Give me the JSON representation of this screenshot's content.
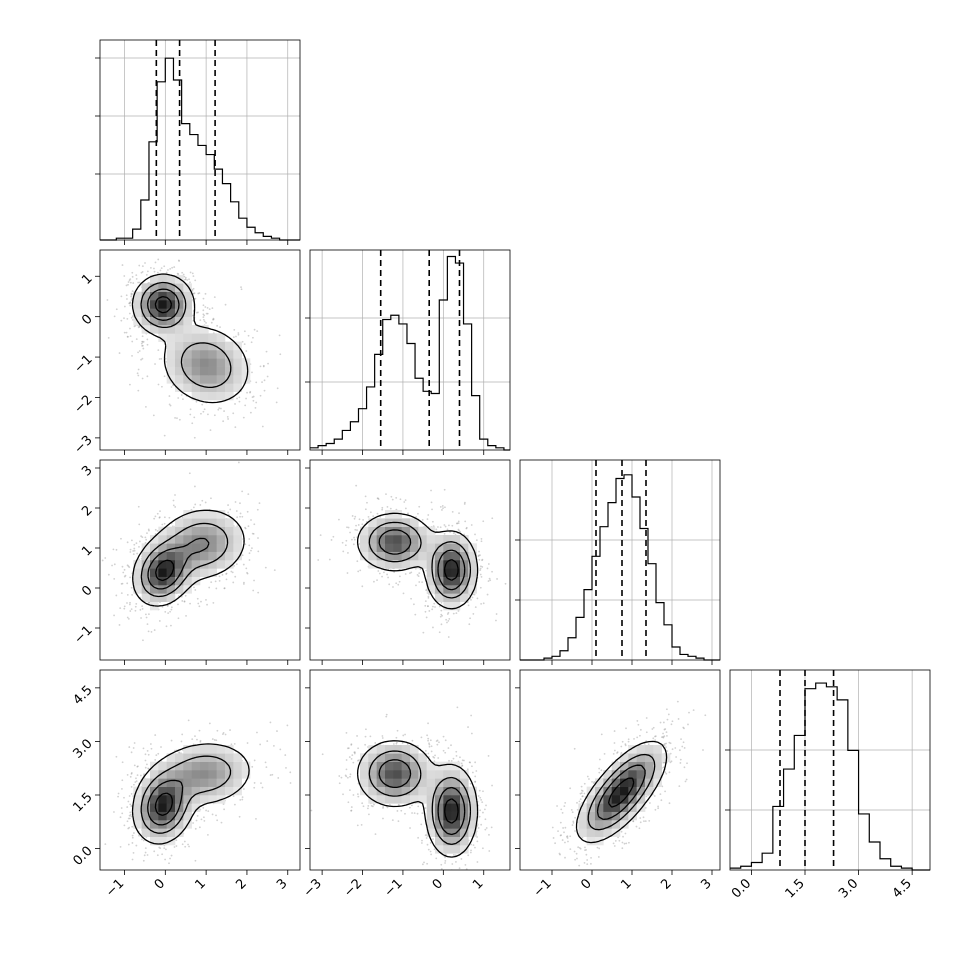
{
  "chart_data": {
    "type": "corner",
    "title": "",
    "grid": true,
    "params": [
      {
        "ticks": [
          -1,
          0,
          1,
          2,
          3
        ],
        "tick_labels": [
          "−1",
          "0",
          "1",
          "2",
          "3"
        ],
        "range": [
          -1.6,
          3.3
        ]
      },
      {
        "ticks": [
          -3,
          -2,
          -1,
          0,
          1
        ],
        "tick_labels": [
          "−3",
          "−2",
          "−1",
          "0",
          "1"
        ],
        "range": [
          -3.3,
          1.65
        ]
      },
      {
        "ticks": [
          -1,
          0,
          1,
          2,
          3
        ],
        "tick_labels": [
          "−1",
          "0",
          "1",
          "2",
          "3"
        ],
        "range": [
          -1.8,
          3.2
        ]
      },
      {
        "ticks": [
          0,
          1.5,
          3,
          4.5
        ],
        "tick_labels": [
          "0.0",
          "1.5",
          "3.0",
          "4.5"
        ],
        "range": [
          -0.6,
          5.0
        ]
      }
    ],
    "histograms": [
      {
        "bin_edges": [
          -1.6,
          -1.4,
          -1.2,
          -1.0,
          -0.8,
          -0.6,
          -0.4,
          -0.2,
          0.0,
          0.2,
          0.4,
          0.6,
          0.8,
          1.0,
          1.2,
          1.4,
          1.6,
          1.8,
          2.0,
          2.2,
          2.4,
          2.6,
          2.8,
          3.0,
          3.3
        ],
        "counts": [
          0,
          0,
          0.01,
          0.01,
          0.06,
          0.22,
          0.54,
          0.87,
          1.0,
          0.88,
          0.64,
          0.58,
          0.52,
          0.47,
          0.39,
          0.31,
          0.21,
          0.12,
          0.07,
          0.04,
          0.02,
          0.01,
          0,
          0
        ],
        "ymax": 1.1,
        "ytick_fracs": [
          0.33,
          0.62,
          0.91
        ],
        "quantiles": [
          -0.22,
          0.35,
          1.22
        ]
      },
      {
        "bin_edges": [
          -3.3,
          -3.1,
          -2.9,
          -2.7,
          -2.5,
          -2.3,
          -2.1,
          -1.9,
          -1.7,
          -1.5,
          -1.3,
          -1.1,
          -0.9,
          -0.7,
          -0.5,
          -0.3,
          -0.1,
          0.1,
          0.3,
          0.5,
          0.7,
          0.9,
          1.1,
          1.3,
          1.5,
          1.65
        ],
        "counts": [
          0.01,
          0.02,
          0.03,
          0.05,
          0.09,
          0.13,
          0.19,
          0.29,
          0.44,
          0.6,
          0.62,
          0.58,
          0.49,
          0.33,
          0.27,
          0.26,
          0.69,
          0.89,
          0.86,
          0.58,
          0.25,
          0.05,
          0.02,
          0.01,
          0
        ],
        "ymax": 0.92,
        "ytick_fracs": [
          0.34,
          0.66
        ],
        "quantiles": [
          -1.55,
          -0.35,
          0.4
        ]
      },
      {
        "bin_edges": [
          -1.8,
          -1.6,
          -1.4,
          -1.2,
          -1.0,
          -0.8,
          -0.6,
          -0.4,
          -0.2,
          0.0,
          0.2,
          0.4,
          0.6,
          0.8,
          1.0,
          1.2,
          1.4,
          1.6,
          1.8,
          2.0,
          2.2,
          2.4,
          2.6,
          2.8,
          3.0,
          3.2
        ],
        "counts": [
          0,
          0,
          0,
          0.01,
          0.02,
          0.05,
          0.12,
          0.23,
          0.38,
          0.56,
          0.72,
          0.85,
          0.98,
          1.0,
          0.88,
          0.71,
          0.52,
          0.31,
          0.19,
          0.07,
          0.03,
          0.02,
          0.01,
          0,
          0
        ],
        "ymax": 1.08,
        "ytick_fracs": [
          0.3,
          0.6
        ],
        "quantiles": [
          0.1,
          0.75,
          1.35
        ]
      },
      {
        "bin_edges": [
          -0.6,
          -0.3,
          0.0,
          0.3,
          0.6,
          0.9,
          1.2,
          1.5,
          1.8,
          2.1,
          2.4,
          2.7,
          3.0,
          3.3,
          3.6,
          3.9,
          4.2,
          4.5,
          4.8,
          5.0
        ],
        "counts": [
          0.01,
          0.02,
          0.04,
          0.09,
          0.34,
          0.54,
          0.72,
          0.97,
          1.0,
          0.98,
          0.91,
          0.64,
          0.3,
          0.15,
          0.06,
          0.02,
          0.01,
          0,
          0
        ],
        "ymax": 1.07,
        "ytick_fracs": [
          0.3,
          0.6
        ],
        "quantiles": [
          0.8,
          1.5,
          2.3
        ]
      }
    ],
    "joint": [
      {
        "row": 1,
        "col": 0,
        "modes": [
          {
            "cx": -0.05,
            "cy": 0.3,
            "sx": 0.35,
            "sy": 0.35,
            "rho": 0.0,
            "w": 1.0
          },
          {
            "cx": 1.0,
            "cy": -1.2,
            "sx": 0.55,
            "sy": 0.5,
            "rho": -0.15,
            "w": 0.55
          }
        ],
        "levels": [
          0.85,
          0.55,
          0.3,
          0.1
        ]
      },
      {
        "row": 2,
        "col": 0,
        "modes": [
          {
            "cx": -0.05,
            "cy": 0.4,
            "sx": 0.35,
            "sy": 0.4,
            "rho": 0.2,
            "w": 1.0
          },
          {
            "cx": 0.9,
            "cy": 1.1,
            "sx": 0.55,
            "sy": 0.45,
            "rho": 0.1,
            "w": 0.6
          }
        ],
        "levels": [
          0.85,
          0.55,
          0.3,
          0.1
        ]
      },
      {
        "row": 2,
        "col": 1,
        "modes": [
          {
            "cx": -1.2,
            "cy": 1.15,
            "sx": 0.45,
            "sy": 0.35,
            "rho": 0.0,
            "w": 0.8
          },
          {
            "cx": 0.2,
            "cy": 0.45,
            "sx": 0.3,
            "sy": 0.45,
            "rho": 0.0,
            "w": 1.0
          }
        ],
        "levels": [
          0.85,
          0.55,
          0.3,
          0.1
        ]
      },
      {
        "row": 3,
        "col": 0,
        "modes": [
          {
            "cx": -0.05,
            "cy": 1.2,
            "sx": 0.35,
            "sy": 0.5,
            "rho": 0.15,
            "w": 1.0
          },
          {
            "cx": 0.95,
            "cy": 2.1,
            "sx": 0.6,
            "sy": 0.45,
            "rho": 0.1,
            "w": 0.55
          }
        ],
        "levels": [
          0.85,
          0.55,
          0.3,
          0.1
        ]
      },
      {
        "row": 3,
        "col": 1,
        "modes": [
          {
            "cx": -1.2,
            "cy": 2.1,
            "sx": 0.45,
            "sy": 0.45,
            "rho": 0.0,
            "w": 0.8
          },
          {
            "cx": 0.2,
            "cy": 1.05,
            "sx": 0.3,
            "sy": 0.6,
            "rho": 0.0,
            "w": 1.0
          }
        ],
        "levels": [
          0.85,
          0.55,
          0.3,
          0.1
        ]
      },
      {
        "row": 3,
        "col": 2,
        "modes": [
          {
            "cx": 0.5,
            "cy": 1.25,
            "sx": 0.45,
            "sy": 0.55,
            "rho": 0.6,
            "w": 1.0
          },
          {
            "cx": 1.0,
            "cy": 1.95,
            "sx": 0.45,
            "sy": 0.55,
            "rho": 0.6,
            "w": 0.9
          }
        ],
        "levels": [
          0.85,
          0.55,
          0.3,
          0.1
        ]
      }
    ]
  }
}
